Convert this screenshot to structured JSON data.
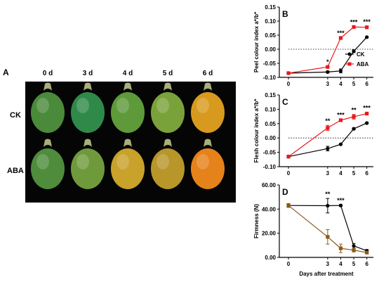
{
  "figure_panels": {
    "A": {
      "letter": "A",
      "day_labels": [
        "0 d",
        "3 d",
        "4 d",
        "5 d",
        "6 d"
      ],
      "row_labels": [
        "CK",
        "ABA"
      ],
      "fruit_colors": {
        "CK": [
          "#4a8a3a",
          "#2f8a4a",
          "#5e9a3a",
          "#7aa23a",
          "#d89a1e"
        ],
        "ABA": [
          "#4f8c3c",
          "#6f9a3c",
          "#c8a22a",
          "#b8962a",
          "#e6821a"
        ]
      }
    }
  },
  "chart_data": [
    {
      "panel": "B",
      "type": "line",
      "ylabel": "Peel colour index a*/b*",
      "x": [
        0,
        3,
        4,
        5,
        6
      ],
      "ylim": [
        -0.1,
        0.15
      ],
      "yticks": [
        -0.1,
        -0.05,
        0.0,
        0.05,
        0.1,
        0.15
      ],
      "ytick_labels": [
        "-0.10",
        "-0.05",
        "0.00",
        "0.05",
        "0.10",
        "0.15"
      ],
      "baseline_dotted": 0.0,
      "series": [
        {
          "name": "CK",
          "color": "#000000",
          "marker": "circle",
          "values": [
            -0.085,
            -0.081,
            -0.077,
            -0.007,
            0.043
          ],
          "errors": [
            0.002,
            0.003,
            0.007,
            0.005,
            0.002
          ]
        },
        {
          "name": "ABA",
          "color": "#e8191e",
          "marker": "square",
          "values": [
            -0.085,
            -0.063,
            0.04,
            0.079,
            0.078
          ],
          "errors": [
            0.002,
            0.003,
            0.003,
            0.002,
            0.004
          ]
        }
      ],
      "significance": [
        "",
        "*",
        "***",
        "***",
        "***"
      ],
      "legend": "right"
    },
    {
      "panel": "C",
      "type": "line",
      "ylabel": "Flesh colour index a*/b*",
      "x": [
        0,
        3,
        4,
        5,
        6
      ],
      "ylim": [
        -0.1,
        0.15
      ],
      "yticks": [
        -0.1,
        -0.05,
        0.0,
        0.05,
        0.1,
        0.15
      ],
      "ytick_labels": [
        "-0.10",
        "-0.05",
        "0.00",
        "0.05",
        "0.10",
        "0.15"
      ],
      "baseline_dotted": 0.0,
      "series": [
        {
          "name": "CK",
          "color": "#000000",
          "marker": "circle",
          "values": [
            -0.065,
            -0.037,
            -0.022,
            0.032,
            0.052
          ],
          "errors": [
            0.002,
            0.008,
            0.002,
            0.003,
            0.002
          ]
        },
        {
          "name": "ABA",
          "color": "#e8191e",
          "marker": "square",
          "values": [
            -0.065,
            0.035,
            0.062,
            0.074,
            0.085
          ],
          "errors": [
            0.002,
            0.009,
            0.004,
            0.008,
            0.005
          ]
        }
      ],
      "significance": [
        "",
        "**",
        "***",
        "**",
        "***"
      ]
    },
    {
      "panel": "D",
      "type": "line",
      "ylabel": "Firmness (N)",
      "xlabel": "Days after treatment",
      "x": [
        0,
        3,
        4,
        5,
        6
      ],
      "xtick_labels": [
        "0",
        "3",
        "4",
        "5",
        "6"
      ],
      "ylim": [
        0,
        60
      ],
      "yticks": [
        0,
        20,
        40,
        60
      ],
      "ytick_labels": [
        "0.00",
        "20.00",
        "40.00",
        "60.00"
      ],
      "series": [
        {
          "name": "CK",
          "color": "#000000",
          "marker": "circle",
          "values": [
            43,
            42.8,
            43,
            9.5,
            5.5
          ],
          "errors": [
            1.5,
            6,
            0.8,
            2,
            1
          ]
        },
        {
          "name": "ABA",
          "color": "#8a5a1a",
          "marker": "square",
          "values": [
            43,
            17,
            7.5,
            6,
            4
          ],
          "errors": [
            1.5,
            6,
            3.5,
            1.5,
            1
          ]
        }
      ],
      "significance": [
        "",
        "**",
        "***",
        "",
        ""
      ]
    }
  ]
}
